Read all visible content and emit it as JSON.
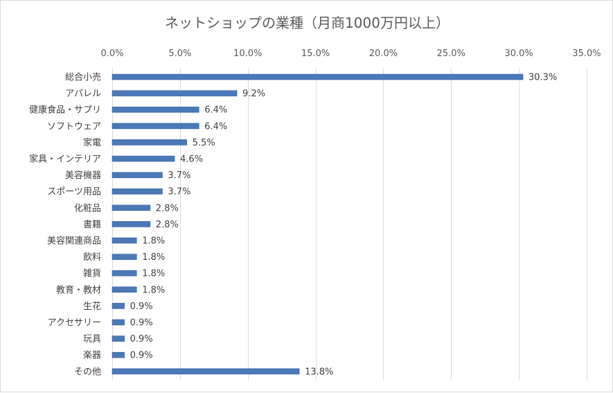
{
  "chart_data": {
    "type": "bar",
    "orientation": "horizontal",
    "title": "ネットショップの業種（月商1000万円以上）",
    "xlabel": "",
    "ylabel": "",
    "xlim": [
      0,
      35
    ],
    "x_ticks": [
      0,
      5,
      10,
      15,
      20,
      25,
      30,
      35
    ],
    "x_tick_labels": [
      "0.0%",
      "5.0%",
      "10.0%",
      "15.0%",
      "20.0%",
      "25.0%",
      "30.0%",
      "35.0%"
    ],
    "x_axis_position": "top",
    "grid": true,
    "legend": "none",
    "bar_color": "#4a78b8",
    "categories": [
      "総合小売",
      "アパレル",
      "健康食品・サプリ",
      "ソフトウェア",
      "家電",
      "家具・インテリア",
      "美容機器",
      "スポーツ用品",
      "化粧品",
      "書籍",
      "美容関連商品",
      "飲料",
      "雑貨",
      "教育・教材",
      "生花",
      "アクセサリー",
      "玩具",
      "楽器",
      "その他"
    ],
    "values": [
      30.3,
      9.2,
      6.4,
      6.4,
      5.5,
      4.6,
      3.7,
      3.7,
      2.8,
      2.8,
      1.8,
      1.8,
      1.8,
      1.8,
      0.9,
      0.9,
      0.9,
      0.9,
      13.8
    ],
    "data_labels": [
      "30.3%",
      "9.2%",
      "6.4%",
      "6.4%",
      "5.5%",
      "4.6%",
      "3.7%",
      "3.7%",
      "2.8%",
      "2.8%",
      "1.8%",
      "1.8%",
      "1.8%",
      "1.8%",
      "0.9%",
      "0.9%",
      "0.9%",
      "0.9%",
      "13.8%"
    ]
  }
}
